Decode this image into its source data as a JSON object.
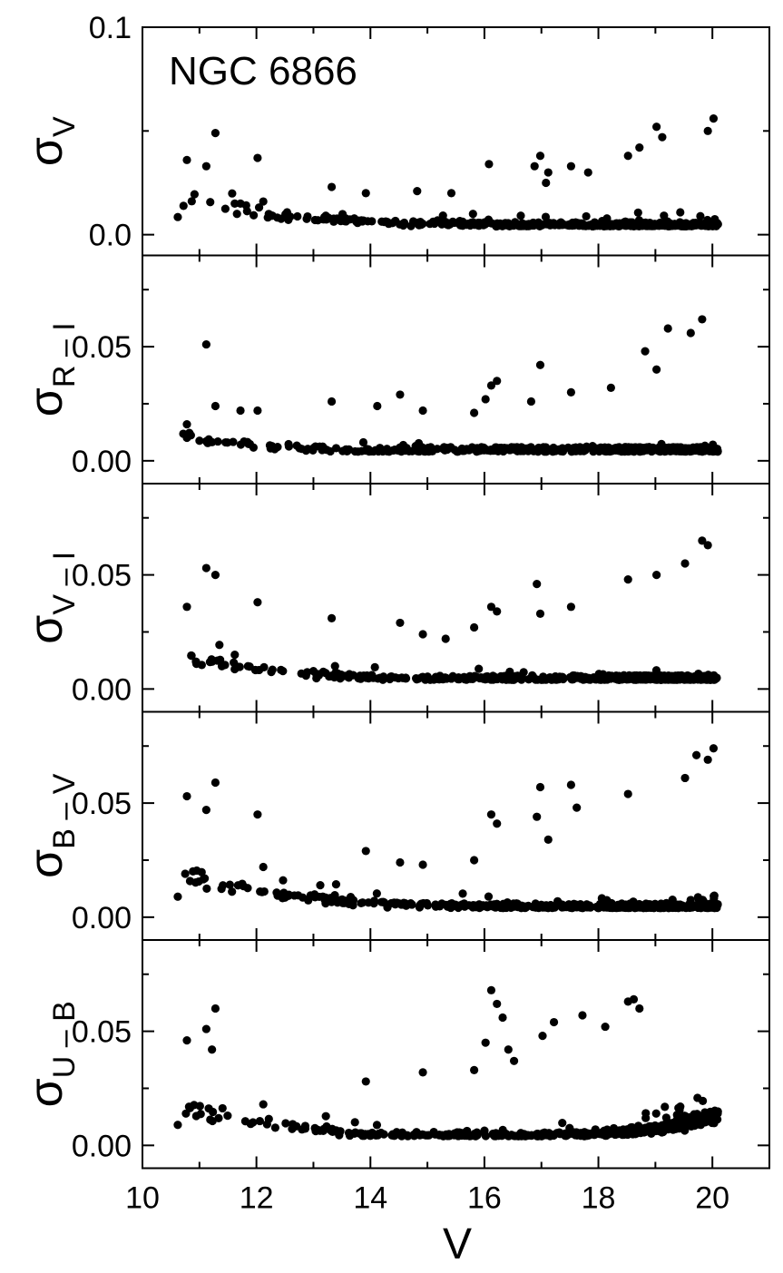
{
  "chart_data": {
    "type": "scatter",
    "annotation": "NGC 6866",
    "xlabel": "V",
    "xlim": [
      10,
      21
    ],
    "x_ticks": [
      10,
      12,
      14,
      16,
      18,
      20
    ],
    "x_tick_labels": [
      "10",
      "12",
      "14",
      "16",
      "18",
      "20"
    ],
    "x_minor_step": 1,
    "marker_color": "#000000",
    "panels": [
      {
        "ylabel_symbol": "σ",
        "ylabel_sub": "V",
        "ylim": [
          -0.01,
          0.1
        ],
        "y_ticks": [
          0.0,
          0.1
        ],
        "y_tick_labels": [
          "0.0",
          "0.1"
        ],
        "y_minor_step": 0.05,
        "curve": {
          "a": 0.0185,
          "b": 0.0043,
          "c": 0.56,
          "d": 8e-07,
          "e": 0.62
        },
        "scatter": 0.17,
        "points": [
          [
            10.62,
            0.0085
          ],
          [
            10.78,
            0.036
          ],
          [
            11.12,
            0.033
          ],
          [
            11.28,
            0.049
          ],
          [
            11.62,
            0.015
          ],
          [
            11.72,
            0.015
          ],
          [
            12.02,
            0.037
          ],
          [
            12.12,
            0.016
          ],
          [
            13.32,
            0.023
          ],
          [
            13.92,
            0.02
          ],
          [
            14.82,
            0.021
          ],
          [
            15.42,
            0.02
          ],
          [
            16.08,
            0.034
          ],
          [
            16.88,
            0.033
          ],
          [
            16.98,
            0.038
          ],
          [
            17.12,
            0.03
          ],
          [
            17.08,
            0.025
          ],
          [
            17.52,
            0.033
          ],
          [
            17.82,
            0.03
          ],
          [
            18.72,
            0.042
          ],
          [
            19.02,
            0.052
          ],
          [
            19.12,
            0.047
          ],
          [
            20.02,
            0.056
          ],
          [
            19.92,
            0.05
          ],
          [
            18.52,
            0.038
          ]
        ]
      },
      {
        "ylabel_symbol": "σ",
        "ylabel_sub": "R – I",
        "ylim": [
          -0.01,
          0.09
        ],
        "y_ticks": [
          0.0,
          0.05
        ],
        "y_tick_labels": [
          "0.00",
          "0.05"
        ],
        "y_minor_step": 0.025,
        "curve": {
          "a": 0.0125,
          "b": 0.00275,
          "c": 0.56,
          "d": 4.5e-07,
          "e": 0.72
        },
        "scatter": 0.17,
        "points": [
          [
            10.78,
            0.016
          ],
          [
            11.12,
            0.051
          ],
          [
            11.28,
            0.024
          ],
          [
            11.72,
            0.022
          ],
          [
            12.02,
            0.022
          ],
          [
            13.32,
            0.026
          ],
          [
            14.12,
            0.024
          ],
          [
            14.52,
            0.029
          ],
          [
            14.92,
            0.022
          ],
          [
            15.82,
            0.021
          ],
          [
            16.02,
            0.027
          ],
          [
            16.12,
            0.033
          ],
          [
            16.22,
            0.035
          ],
          [
            16.82,
            0.026
          ],
          [
            16.98,
            0.042
          ],
          [
            17.52,
            0.03
          ],
          [
            18.22,
            0.032
          ],
          [
            18.82,
            0.048
          ],
          [
            19.22,
            0.058
          ],
          [
            19.82,
            0.062
          ],
          [
            19.62,
            0.056
          ],
          [
            19.02,
            0.04
          ]
        ]
      },
      {
        "ylabel_symbol": "σ",
        "ylabel_sub": "V – I",
        "ylim": [
          -0.01,
          0.09
        ],
        "y_ticks": [
          0.0,
          0.05
        ],
        "y_tick_labels": [
          "0.00",
          "0.05"
        ],
        "y_minor_step": 0.025,
        "curve": {
          "a": 0.0175,
          "b": 0.0033,
          "c": 0.56,
          "d": 6e-07,
          "e": 0.72
        },
        "scatter": 0.17,
        "points": [
          [
            10.78,
            0.036
          ],
          [
            11.12,
            0.053
          ],
          [
            11.28,
            0.05
          ],
          [
            11.62,
            0.015
          ],
          [
            12.02,
            0.038
          ],
          [
            13.32,
            0.031
          ],
          [
            14.52,
            0.029
          ],
          [
            14.92,
            0.024
          ],
          [
            15.32,
            0.022
          ],
          [
            15.82,
            0.027
          ],
          [
            16.12,
            0.036
          ],
          [
            16.22,
            0.034
          ],
          [
            16.92,
            0.046
          ],
          [
            16.98,
            0.033
          ],
          [
            17.52,
            0.036
          ],
          [
            18.52,
            0.048
          ],
          [
            19.02,
            0.05
          ],
          [
            19.82,
            0.065
          ],
          [
            19.92,
            0.063
          ],
          [
            19.52,
            0.055
          ]
        ]
      },
      {
        "ylabel_symbol": "σ",
        "ylabel_sub": "B – V",
        "ylim": [
          -0.01,
          0.09
        ],
        "y_ticks": [
          0.0,
          0.05
        ],
        "y_tick_labels": [
          "0.00",
          "0.05"
        ],
        "y_minor_step": 0.025,
        "curve": {
          "a": 0.024,
          "b": 0.0037,
          "c": 0.56,
          "d": 7e-07,
          "e": 0.72
        },
        "scatter": 0.17,
        "points": [
          [
            10.62,
            0.009
          ],
          [
            10.78,
            0.053
          ],
          [
            11.28,
            0.059
          ],
          [
            11.12,
            0.047
          ],
          [
            12.02,
            0.045
          ],
          [
            12.12,
            0.022
          ],
          [
            13.02,
            0.01
          ],
          [
            13.12,
            0.014
          ],
          [
            13.92,
            0.029
          ],
          [
            14.52,
            0.024
          ],
          [
            14.92,
            0.023
          ],
          [
            15.82,
            0.025
          ],
          [
            16.12,
            0.045
          ],
          [
            16.22,
            0.041
          ],
          [
            16.92,
            0.044
          ],
          [
            16.98,
            0.057
          ],
          [
            17.12,
            0.034
          ],
          [
            17.52,
            0.058
          ],
          [
            17.62,
            0.048
          ],
          [
            18.52,
            0.054
          ],
          [
            19.72,
            0.071
          ],
          [
            20.02,
            0.074
          ],
          [
            19.92,
            0.069
          ],
          [
            19.52,
            0.061
          ]
        ]
      },
      {
        "ylabel_symbol": "σ",
        "ylabel_sub": "U – B",
        "ylim": [
          -0.01,
          0.09
        ],
        "y_ticks": [
          0.0,
          0.05
        ],
        "y_tick_labels": [
          "0.00",
          "0.05"
        ],
        "y_minor_step": 0.025,
        "curve": {
          "a": 0.024,
          "b": 0.0027,
          "c": 0.6,
          "d": 6e-06,
          "e": 0.74
        },
        "scatter": 0.18,
        "points": [
          [
            10.62,
            0.009
          ],
          [
            10.78,
            0.046
          ],
          [
            11.12,
            0.051
          ],
          [
            11.28,
            0.06
          ],
          [
            11.22,
            0.042
          ],
          [
            12.12,
            0.018
          ],
          [
            13.92,
            0.028
          ],
          [
            14.92,
            0.032
          ],
          [
            15.82,
            0.033
          ],
          [
            16.02,
            0.045
          ],
          [
            16.12,
            0.068
          ],
          [
            16.22,
            0.062
          ],
          [
            16.32,
            0.056
          ],
          [
            16.42,
            0.042
          ],
          [
            16.52,
            0.037
          ],
          [
            17.02,
            0.048
          ],
          [
            17.22,
            0.054
          ],
          [
            17.72,
            0.057
          ],
          [
            18.52,
            0.063
          ],
          [
            18.72,
            0.06
          ],
          [
            18.62,
            0.064
          ],
          [
            18.12,
            0.052
          ]
        ]
      }
    ]
  }
}
